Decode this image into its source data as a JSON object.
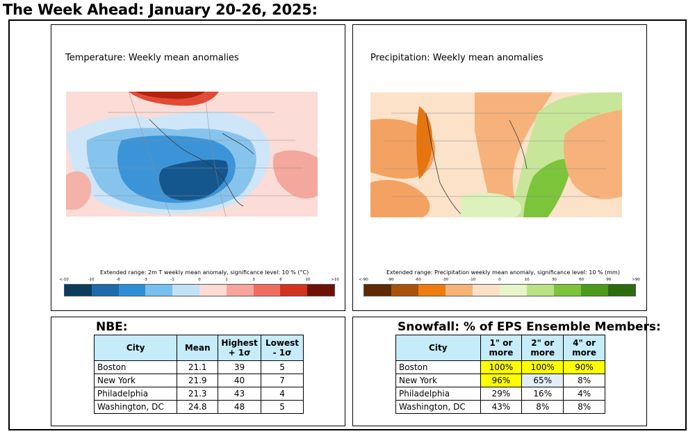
{
  "page": {
    "title": "The Week Ahead: January 20-26, 2025:"
  },
  "temperature_panel": {
    "label": "Temperature: Weekly mean anomalies",
    "caption": "Extended range: 2m T weekly mean anomaly, significance level: 10 % (°C)",
    "ticks": [
      "<-10",
      "-10",
      "-6",
      "-3",
      "-1",
      "0",
      "1",
      "3",
      "6",
      "10",
      ">10"
    ],
    "colors": [
      "#0b3c5d",
      "#1c6aa8",
      "#2f8fd6",
      "#79bfee",
      "#c2e2f7",
      "#ffd9d4",
      "#f7a59a",
      "#f06d5e",
      "#d2341f",
      "#6e1208"
    ]
  },
  "precipitation_panel": {
    "label": "Precipitation: Weekly mean anomalies",
    "caption": "Extended range: Precipitation weekly mean anomaly, significance level: 10 % (mm)",
    "ticks": [
      "<-90",
      "-90",
      "-60",
      "-30",
      "-10",
      "0",
      "10",
      "30",
      "60",
      "90",
      ">90"
    ],
    "colors": [
      "#5e2a05",
      "#a8530c",
      "#ee7c10",
      "#f7b47a",
      "#fde0c8",
      "#e8f5c8",
      "#b9e283",
      "#7fc23c",
      "#4b9a1c",
      "#2c6a10"
    ]
  },
  "nbe_table": {
    "title": "NBE:",
    "headers": [
      "City",
      "Mean",
      "Highest + 1σ",
      "Lowest - 1σ"
    ],
    "rows": [
      {
        "city": "Boston",
        "mean": "21.1",
        "highest": "39",
        "lowest": "5"
      },
      {
        "city": "New York",
        "mean": "21.9",
        "highest": "40",
        "lowest": "7"
      },
      {
        "city": "Philadelphia",
        "mean": "21.3",
        "highest": "43",
        "lowest": "4"
      },
      {
        "city": "Washington, DC",
        "mean": "24.8",
        "highest": "48",
        "lowest": "5"
      }
    ]
  },
  "snow_table": {
    "title": "Snowfall: % of EPS Ensemble Members:",
    "headers": [
      "City",
      "1\" or more",
      "2\" or more",
      "4\" or more"
    ],
    "rows": [
      {
        "city": "Boston",
        "one": "100%",
        "two": "100%",
        "four": "90%"
      },
      {
        "city": "New York",
        "one": "96%",
        "two": "65%",
        "four": "8%"
      },
      {
        "city": "Philadelphia",
        "one": "29%",
        "two": "16%",
        "four": "4%"
      },
      {
        "city": "Washington, DC",
        "one": "43%",
        "two": "8%",
        "four": "8%"
      }
    ],
    "highlight_color": "#ffff00"
  }
}
